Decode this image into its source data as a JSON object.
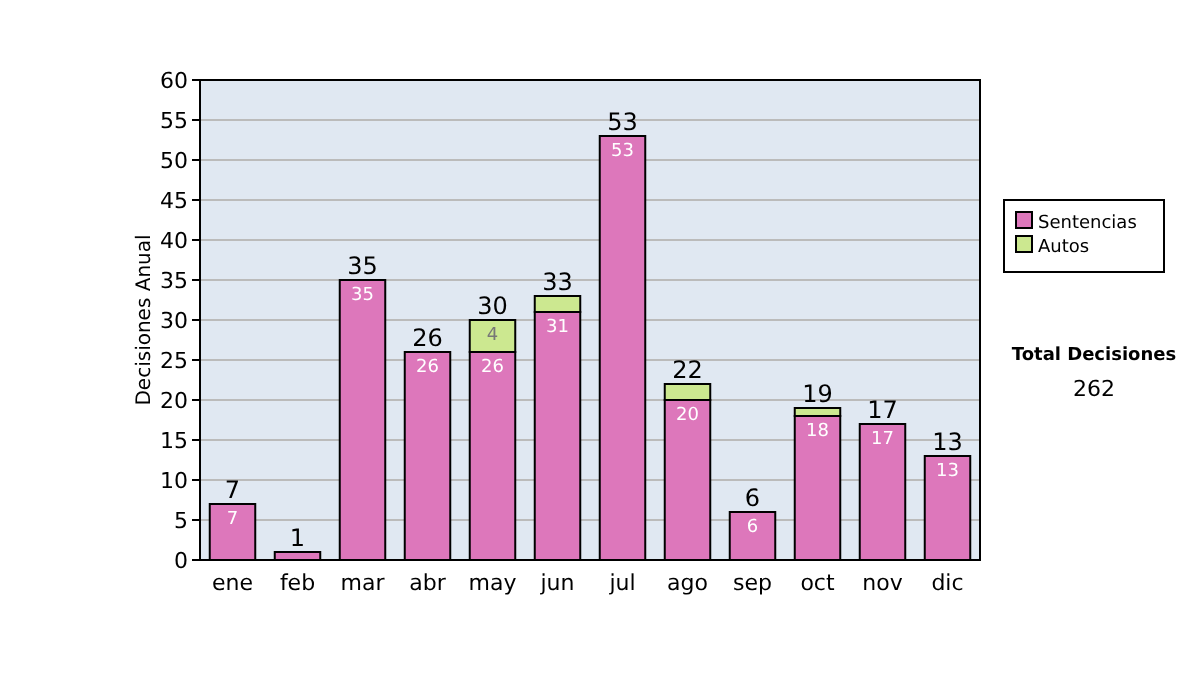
{
  "chart_data": {
    "type": "bar",
    "ylabel": "Decisiones Anual",
    "categories": [
      "ene",
      "feb",
      "mar",
      "abr",
      "may",
      "jun",
      "jul",
      "ago",
      "sep",
      "oct",
      "nov",
      "dic"
    ],
    "series": [
      {
        "name": "Sentencias",
        "color": "#dd77bb",
        "values": [
          7,
          1,
          35,
          26,
          26,
          31,
          53,
          20,
          6,
          18,
          17,
          13
        ],
        "value_labels": [
          "7",
          null,
          "35",
          "26",
          "26",
          "31",
          "53",
          "20",
          "6",
          "18",
          "17",
          "13"
        ]
      },
      {
        "name": "Autos",
        "color": "#cce890",
        "values": [
          null,
          null,
          null,
          null,
          4,
          2,
          null,
          2,
          null,
          1,
          null,
          null
        ],
        "value_labels": [
          null,
          null,
          null,
          null,
          "4",
          null,
          null,
          null,
          null,
          null,
          null,
          null
        ]
      }
    ],
    "stacked": true,
    "totals": [
      "7",
      "1",
      "35",
      "26",
      "30",
      "33",
      "53",
      "22",
      "6",
      "19",
      "17",
      "13"
    ],
    "ylim": [
      0,
      60
    ],
    "yticks": [
      0,
      5,
      10,
      15,
      20,
      25,
      30,
      35,
      40,
      45,
      50,
      55,
      60
    ],
    "grid": "y",
    "legend": "right",
    "annotations": [
      "Total Decisiones",
      "262"
    ]
  }
}
